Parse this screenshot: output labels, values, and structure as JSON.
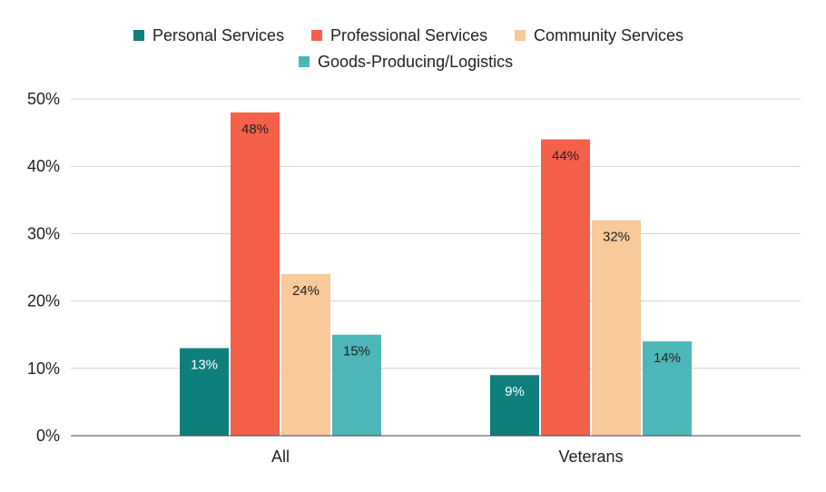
{
  "chart_data": {
    "type": "bar",
    "title": "",
    "xlabel": "",
    "ylabel": "",
    "categories": [
      "All",
      "Veterans"
    ],
    "series": [
      {
        "name": "Personal Services",
        "color": "#0f7f7b",
        "label_color": "#ffffff",
        "values": [
          13,
          9
        ],
        "labels": [
          "13%",
          "9%"
        ]
      },
      {
        "name": "Professional Services",
        "color": "#f4604a",
        "label_color": "#222222",
        "values": [
          48,
          44
        ],
        "labels": [
          "48%",
          "44%"
        ]
      },
      {
        "name": "Community Services",
        "color": "#f7c99b",
        "label_color": "#222222",
        "values": [
          24,
          32
        ],
        "labels": [
          "24%",
          "32%"
        ]
      },
      {
        "name": "Goods-Producing/Logistics",
        "color": "#4db6b8",
        "label_color": "#222222",
        "values": [
          15,
          14
        ],
        "labels": [
          "15%",
          "14%"
        ]
      }
    ],
    "ylim": [
      0,
      50
    ],
    "y_ticks": [
      0,
      10,
      20,
      30,
      40,
      50
    ],
    "y_tick_labels": [
      "0%",
      "10%",
      "20%",
      "30%",
      "40%",
      "50%"
    ],
    "grid": true,
    "legend_position": "top-center"
  }
}
